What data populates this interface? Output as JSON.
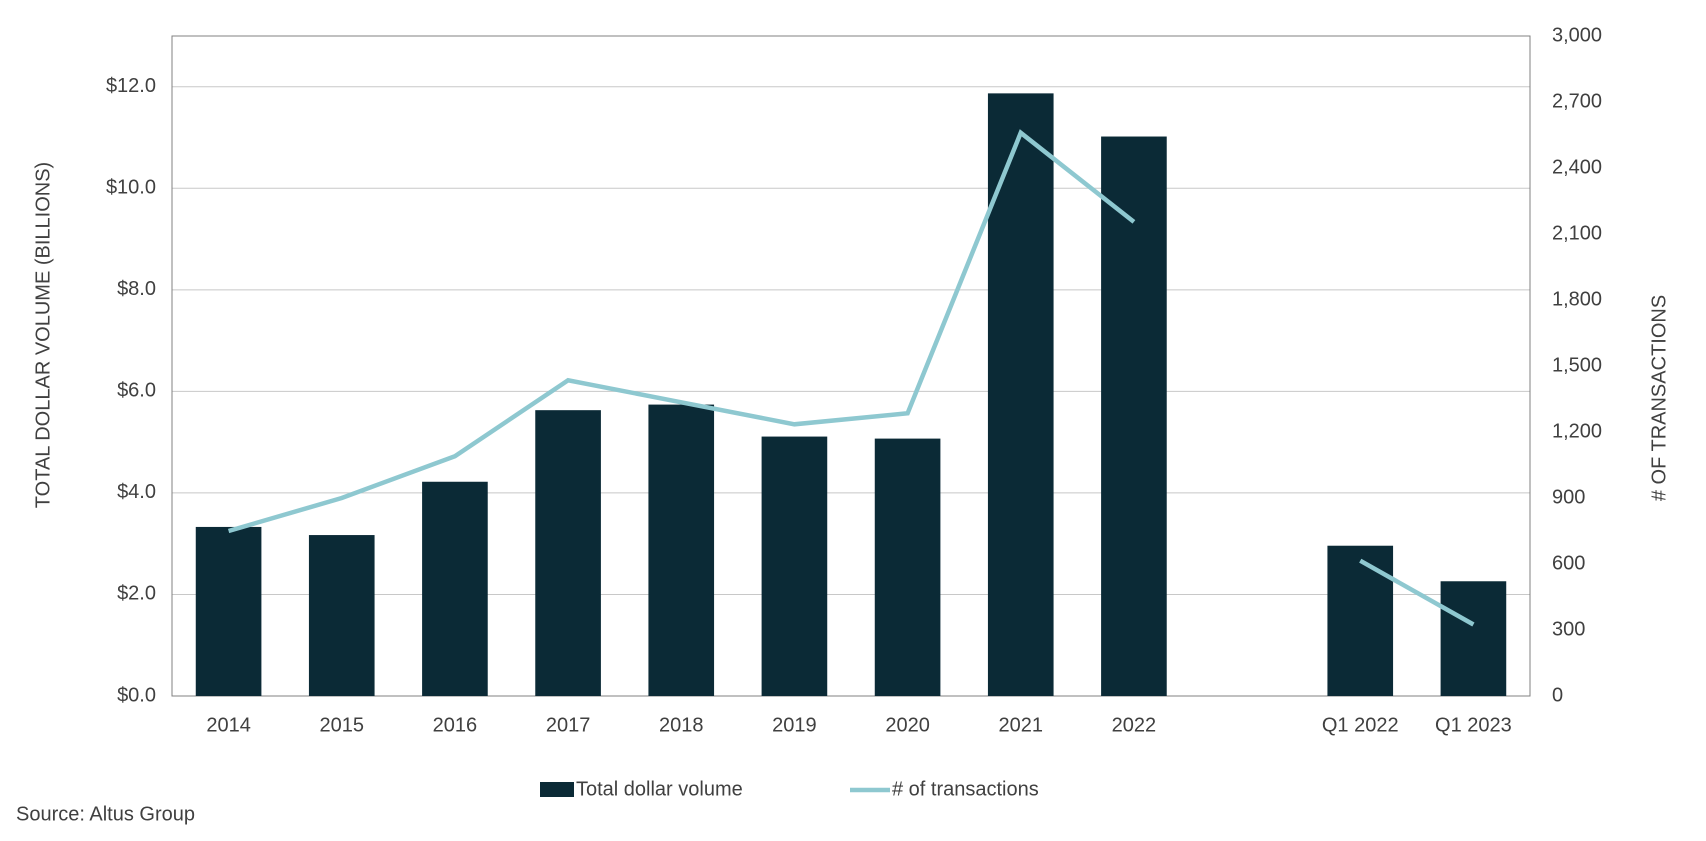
{
  "chart_data": {
    "type": "bar_line",
    "y_label": "TOTAL DOLLAR VOLUME (BILLIONS)",
    "y2_label": "# OF TRANSACTIONS",
    "source": "Source:  Altus Group",
    "categories": [
      "2014",
      "2015",
      "2016",
      "2017",
      "2018",
      "2019",
      "2020",
      "2021",
      "2022",
      null,
      "Q1 2022",
      "Q1 2023"
    ],
    "series": [
      {
        "name": "Total dollar volume",
        "type": "bar",
        "color": "#0b2a36",
        "values": [
          3.33,
          3.17,
          4.22,
          5.63,
          5.74,
          5.11,
          5.07,
          11.87,
          11.02,
          null,
          2.96,
          2.26
        ]
      },
      {
        "name": "# of transactions",
        "type": "line",
        "axis": "y2",
        "color": "#8ec8d0",
        "values": [
          750,
          900,
          1090,
          1435,
          1335,
          1235,
          1285,
          2560,
          2155,
          null,
          615,
          325
        ]
      }
    ],
    "ylim": [
      0,
      13
    ],
    "yticks": [
      {
        "value": 0,
        "label": "$0.0"
      },
      {
        "value": 2,
        "label": "$2.0"
      },
      {
        "value": 4,
        "label": "$4.0"
      },
      {
        "value": 6,
        "label": "$6.0"
      },
      {
        "value": 8,
        "label": "$8.0"
      },
      {
        "value": 10,
        "label": "$10.0"
      },
      {
        "value": 12,
        "label": "$12.0"
      }
    ],
    "y2lim": [
      0,
      3000
    ],
    "y2ticks": [
      0,
      300,
      600,
      900,
      {
        "value": 1200,
        "label": "1,200"
      },
      {
        "value": 1500,
        "label": "1,500"
      },
      {
        "value": 1800,
        "label": "1,800"
      },
      {
        "value": 2100,
        "label": "2,100"
      },
      {
        "value": 2400,
        "label": "2,400"
      },
      {
        "value": 2700,
        "label": "2,700"
      },
      {
        "value": 3000,
        "label": "3,000"
      }
    ],
    "grid": true
  }
}
